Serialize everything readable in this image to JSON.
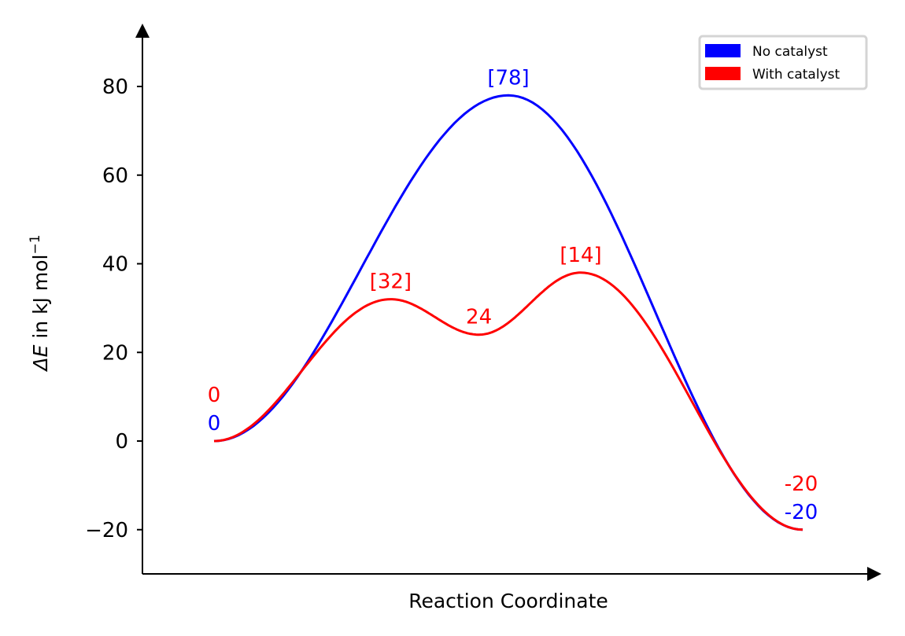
{
  "chart_data": {
    "type": "line",
    "title": "",
    "xlabel": "Reaction Coordinate",
    "ylabel_prefix": "ΔE",
    "ylabel_rest": " in kJ mol",
    "ylabel_exp": "−1",
    "ylim": [
      -30,
      93
    ],
    "xlim": [
      -0.12,
      1.13
    ],
    "yticks": [
      -20,
      0,
      20,
      40,
      60,
      80
    ],
    "ytick_labels": [
      "−20",
      "0",
      "20",
      "40",
      "60",
      "80"
    ],
    "grid": false,
    "legend_position": "top-right",
    "series": [
      {
        "name": "No catalyst",
        "color": "#0000ff",
        "x": [
          0,
          0.5,
          1
        ],
        "y": [
          0,
          78,
          -20
        ]
      },
      {
        "name": "With catalyst",
        "color": "#ff0000",
        "x": [
          0,
          0.3,
          0.45,
          0.623,
          1
        ],
        "y": [
          0,
          32,
          24,
          38,
          -20
        ]
      }
    ],
    "annotations": [
      {
        "text": "[78]",
        "x": 0.5,
        "y": 78,
        "color": "#0000ff"
      },
      {
        "text": "[32]",
        "x": 0.3,
        "y": 32,
        "color": "#ff0000"
      },
      {
        "text": "24",
        "x": 0.45,
        "y": 24,
        "color": "#ff0000"
      },
      {
        "text": "[14]",
        "x": 0.623,
        "y": 38,
        "color": "#ff0000"
      },
      {
        "text": "0",
        "x": 0,
        "y": 0,
        "color": "#ff0000",
        "pos": "upper"
      },
      {
        "text": "0",
        "x": 0,
        "y": 0,
        "color": "#0000ff",
        "pos": "lower"
      },
      {
        "text": "-20",
        "x": 1,
        "y": -20,
        "color": "#ff0000",
        "pos": "upper"
      },
      {
        "text": "-20",
        "x": 1,
        "y": -20,
        "color": "#0000ff",
        "pos": "lower"
      }
    ]
  }
}
